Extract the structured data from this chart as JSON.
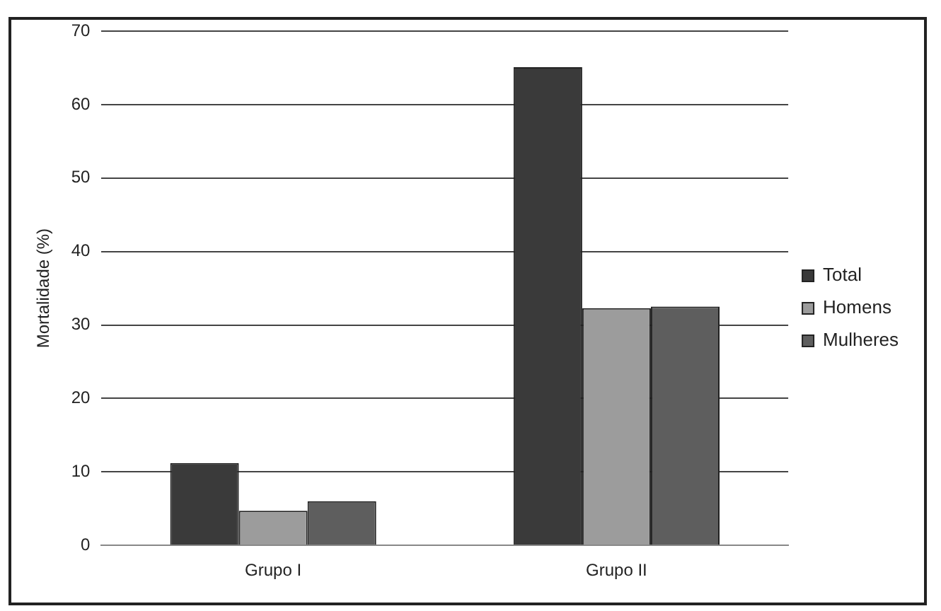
{
  "chart_data": {
    "type": "bar",
    "ylabel": "Mortalidade (%)",
    "categories": [
      "Grupo I",
      "Grupo II"
    ],
    "series": [
      {
        "name": "Total",
        "color": "#3a3a3a",
        "values": [
          11.2,
          65.1
        ]
      },
      {
        "name": "Homens",
        "color": "#9c9c9c",
        "values": [
          4.7,
          32.3
        ]
      },
      {
        "name": "Mulheres",
        "color": "#5e5e5e",
        "values": [
          6.0,
          32.5
        ]
      }
    ],
    "ylim": [
      0,
      70
    ],
    "yticks": [
      0,
      10,
      20,
      30,
      40,
      50,
      60,
      70
    ],
    "grid": "y",
    "legend": "right"
  }
}
